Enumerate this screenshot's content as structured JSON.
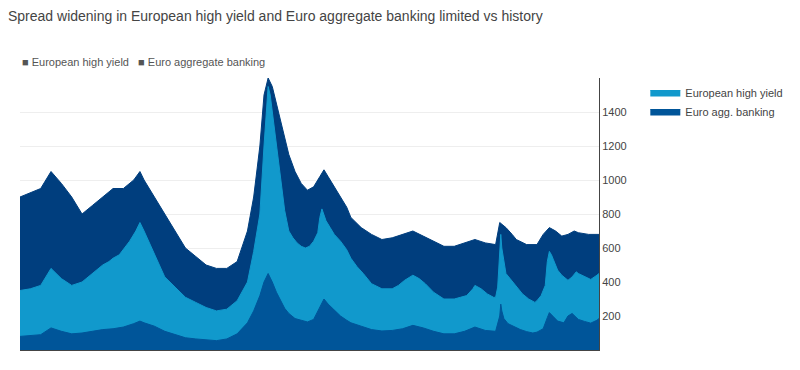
{
  "chart_data": {
    "type": "area",
    "title": "Spread widening in European high yield and Euro aggregate banking limited vs history",
    "subtitle": "■ European high yield   ■ Euro aggregate banking",
    "xlim": [
      1997,
      2025
    ],
    "ylim": [
      0,
      1600
    ],
    "yticks": [
      200,
      400,
      600,
      800,
      1000,
      1200,
      1400
    ],
    "grid": true,
    "legend": "right",
    "tick_labels": "y",
    "series": [
      {
        "color": "#003e7e",
        "x": [
          1997.0,
          1998.0,
          1998.5,
          1999.0,
          1999.5,
          2000.0,
          2000.5,
          2001.0,
          2001.5,
          2002.0,
          2002.5,
          2002.8,
          2003.0,
          2003.5,
          2004.0,
          2004.5,
          2005.0,
          2005.5,
          2006.0,
          2006.5,
          2007.0,
          2007.5,
          2008.0,
          2008.3,
          2008.6,
          2008.8,
          2009.0,
          2009.2,
          2009.4,
          2009.6,
          2009.8,
          2010.0,
          2010.3,
          2010.6,
          2010.9,
          2011.2,
          2011.5,
          2011.7,
          2011.9,
          2012.2,
          2012.5,
          2012.8,
          2013.0,
          2013.5,
          2014.0,
          2014.5,
          2015.0,
          2015.5,
          2016.0,
          2016.5,
          2017.0,
          2017.5,
          2018.0,
          2018.5,
          2019.0,
          2019.5,
          2020.0,
          2020.2,
          2020.5,
          2020.8,
          2021.0,
          2021.5,
          2022.0,
          2022.3,
          2022.6,
          2022.9,
          2023.2,
          2023.5,
          2023.8,
          2024.0,
          2024.5,
          2025.0
        ],
        "values": [
          900,
          950,
          1050,
          980,
          900,
          800,
          850,
          900,
          950,
          950,
          1000,
          1050,
          1000,
          900,
          800,
          700,
          600,
          550,
          500,
          480,
          480,
          520,
          700,
          900,
          1200,
          1500,
          1600,
          1550,
          1450,
          1350,
          1250,
          1150,
          1050,
          980,
          940,
          960,
          1020,
          1060,
          1020,
          960,
          900,
          840,
          780,
          720,
          680,
          650,
          660,
          680,
          700,
          670,
          640,
          610,
          610,
          630,
          650,
          630,
          620,
          750,
          720,
          680,
          650,
          620,
          620,
          680,
          720,
          700,
          670,
          680,
          700,
          690,
          680,
          680
        ]
      },
      {
        "name": "European high yield",
        "color": "#1199cc",
        "x": [
          1997.0,
          1997.5,
          1998.0,
          1998.5,
          1999.0,
          1999.5,
          2000.0,
          2000.3,
          2000.6,
          2001.0,
          2001.3,
          2001.5,
          2001.8,
          2002.0,
          2002.3,
          2002.6,
          2002.8,
          2003.0,
          2003.3,
          2003.6,
          2004.0,
          2004.5,
          2005.0,
          2005.5,
          2006.0,
          2006.5,
          2007.0,
          2007.5,
          2008.0,
          2008.3,
          2008.6,
          2008.8,
          2009.0,
          2009.1,
          2009.2,
          2009.3,
          2009.4,
          2009.5,
          2009.6,
          2009.7,
          2009.8,
          2009.9,
          2010.0,
          2010.2,
          2010.4,
          2010.6,
          2010.8,
          2011.0,
          2011.2,
          2011.4,
          2011.5,
          2011.6,
          2011.7,
          2011.8,
          2012.0,
          2012.2,
          2012.5,
          2012.8,
          2013.0,
          2013.3,
          2013.6,
          2014.0,
          2014.5,
          2015.0,
          2015.3,
          2015.6,
          2016.0,
          2016.3,
          2016.6,
          2017.0,
          2017.5,
          2018.0,
          2018.3,
          2018.6,
          2018.9,
          2019.0,
          2019.3,
          2019.6,
          2019.9,
          2020.0,
          2020.1,
          2020.2,
          2020.25,
          2020.3,
          2020.4,
          2020.5,
          2020.7,
          2020.9,
          2021.0,
          2021.3,
          2021.6,
          2021.9,
          2022.0,
          2022.2,
          2022.4,
          2022.5,
          2022.6,
          2022.7,
          2022.8,
          2022.9,
          2023.0,
          2023.2,
          2023.5,
          2023.7,
          2023.9,
          2024.0,
          2024.3,
          2024.6,
          2024.9,
          2025.0
        ],
        "values": [
          350,
          360,
          380,
          480,
          420,
          380,
          400,
          430,
          460,
          500,
          520,
          540,
          560,
          590,
          640,
          700,
          750,
          700,
          620,
          530,
          430,
          370,
          310,
          280,
          250,
          230,
          240,
          290,
          400,
          580,
          800,
          1200,
          1550,
          1500,
          1400,
          1300,
          1200,
          1100,
          1000,
          900,
          820,
          760,
          700,
          660,
          630,
          610,
          600,
          610,
          640,
          690,
          780,
          830,
          800,
          760,
          720,
          680,
          640,
          590,
          540,
          490,
          450,
          390,
          360,
          360,
          380,
          410,
          440,
          420,
          390,
          340,
          300,
          300,
          310,
          320,
          360,
          380,
          360,
          330,
          310,
          310,
          370,
          550,
          680,
          600,
          510,
          450,
          420,
          390,
          370,
          330,
          300,
          280,
          290,
          320,
          380,
          520,
          580,
          560,
          530,
          500,
          470,
          440,
          410,
          430,
          460,
          450,
          430,
          415,
          440,
          450
        ]
      },
      {
        "name": "Euro agg. banking",
        "color": "#005599",
        "x": [
          1997.0,
          1997.5,
          1998.0,
          1998.5,
          1999.0,
          1999.5,
          2000.0,
          2000.5,
          2001.0,
          2001.5,
          2002.0,
          2002.5,
          2002.8,
          2003.0,
          2003.5,
          2004.0,
          2004.5,
          2005.0,
          2005.5,
          2006.0,
          2006.5,
          2007.0,
          2007.5,
          2008.0,
          2008.3,
          2008.6,
          2008.8,
          2009.0,
          2009.2,
          2009.4,
          2009.6,
          2009.8,
          2010.0,
          2010.3,
          2010.6,
          2010.9,
          2011.2,
          2011.5,
          2011.7,
          2011.9,
          2012.2,
          2012.5,
          2012.8,
          2013.0,
          2013.5,
          2014.0,
          2014.5,
          2015.0,
          2015.5,
          2016.0,
          2016.5,
          2017.0,
          2017.5,
          2018.0,
          2018.5,
          2019.0,
          2019.5,
          2020.0,
          2020.2,
          2020.25,
          2020.3,
          2020.4,
          2020.6,
          2020.9,
          2021.2,
          2021.5,
          2021.8,
          2022.0,
          2022.3,
          2022.5,
          2022.6,
          2022.8,
          2023.0,
          2023.3,
          2023.5,
          2023.7,
          2023.9,
          2024.0,
          2024.3,
          2024.6,
          2024.9,
          2025.0
        ],
        "values": [
          80,
          85,
          90,
          130,
          110,
          95,
          100,
          110,
          120,
          125,
          135,
          155,
          170,
          160,
          140,
          110,
          90,
          72,
          65,
          58,
          55,
          65,
          95,
          160,
          230,
          320,
          400,
          450,
          400,
          340,
          290,
          245,
          215,
          185,
          175,
          165,
          180,
          250,
          300,
          270,
          235,
          200,
          175,
          160,
          140,
          120,
          112,
          115,
          125,
          145,
          130,
          110,
          95,
          95,
          110,
          135,
          115,
          110,
          200,
          270,
          230,
          185,
          155,
          135,
          120,
          108,
          100,
          105,
          125,
          190,
          220,
          195,
          170,
          160,
          200,
          215,
          195,
          180,
          168,
          158,
          175,
          185
        ]
      }
    ]
  }
}
